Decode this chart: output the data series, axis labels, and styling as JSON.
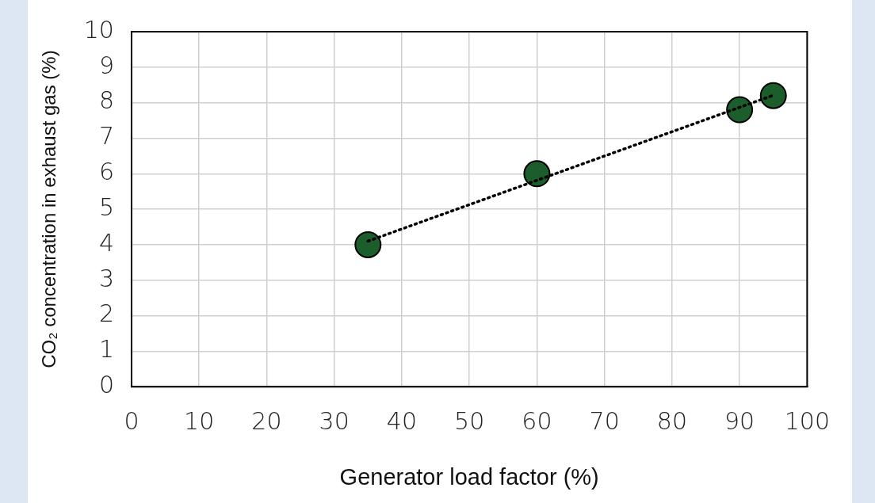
{
  "chart_data": {
    "type": "scatter",
    "xlabel": "Generator load factor (%)",
    "ylabel": "CO₂ concentration in exhaust gas (%)",
    "xlim": [
      0,
      100
    ],
    "xticks": [
      0,
      10,
      20,
      30,
      40,
      50,
      60,
      70,
      80,
      90,
      100
    ],
    "ylim": [
      0,
      10
    ],
    "yticks": [
      0,
      1,
      2,
      3,
      4,
      5,
      6,
      7,
      8,
      9,
      10
    ],
    "grid": true,
    "legend": false,
    "marker": "circle",
    "series": [
      {
        "type": "scatter",
        "color": "#1b5e2b",
        "x": [
          35,
          60,
          90,
          95
        ],
        "values": [
          4,
          6,
          7.8,
          8.2
        ]
      },
      {
        "type": "line",
        "color": "#000000",
        "x": [
          35,
          95
        ],
        "values": [
          4.1,
          8.21
        ],
        "line_style": "dotted",
        "marker": "none"
      }
    ]
  }
}
